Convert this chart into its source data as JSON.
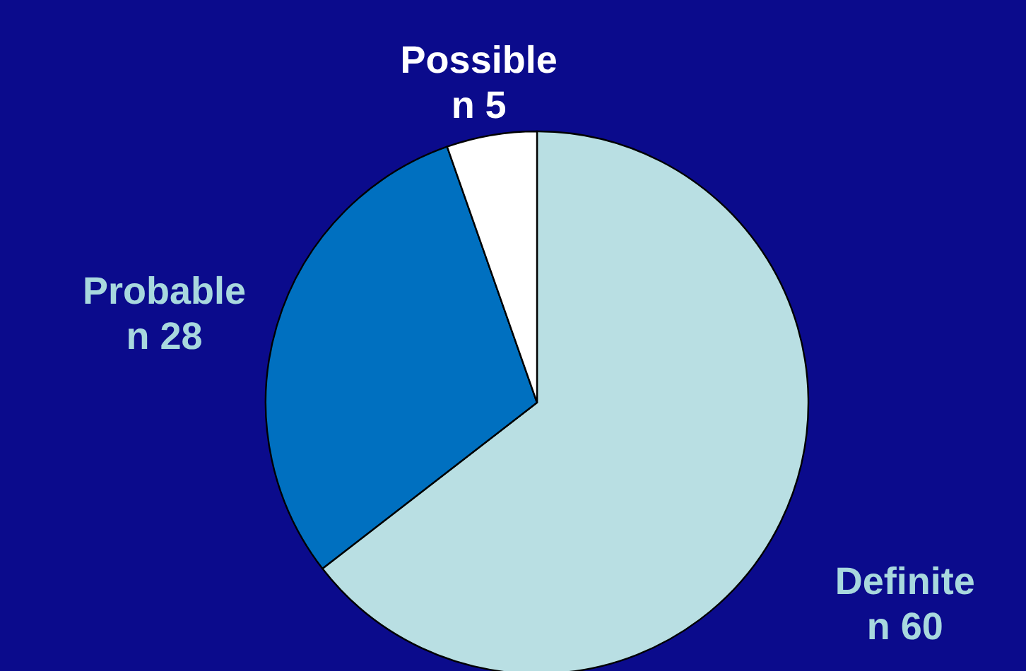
{
  "chart_data": {
    "type": "pie",
    "categories": [
      "Definite",
      "Probable",
      "Possible"
    ],
    "values": [
      60,
      28,
      5
    ],
    "colors": [
      "#b9dfe3",
      "#0070c0",
      "#ffffff"
    ],
    "value_labels": [
      "n 60",
      "n 28",
      "n 5"
    ],
    "legend": false
  }
}
